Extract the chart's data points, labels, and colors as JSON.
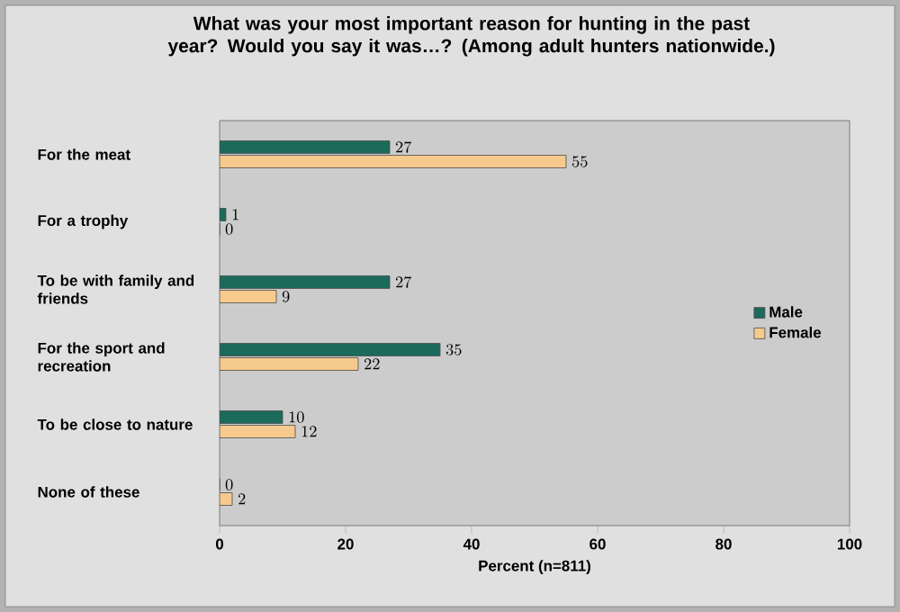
{
  "chart_data": {
    "type": "bar",
    "orientation": "horizontal",
    "title": "What was your most important reason for hunting in the past year? Would you say it was…? (Among adult hunters nationwide.)",
    "categories": [
      "For the meat",
      "For a trophy",
      "To be with family and friends",
      "For the sport and recreation",
      "To be close to nature",
      "None of these"
    ],
    "series": [
      {
        "name": "Male",
        "color": "#1b6b5c",
        "values": [
          27,
          1,
          27,
          35,
          10,
          0
        ]
      },
      {
        "name": "Female",
        "color": "#f6c98c",
        "values": [
          55,
          0,
          9,
          22,
          12,
          2
        ]
      }
    ],
    "xlabel": "Percent (n=811)",
    "xlim": [
      0,
      100
    ],
    "xticks": [
      0,
      20,
      40,
      60,
      80,
      100
    ],
    "data_labels": true,
    "legend": "right",
    "grid": false
  }
}
